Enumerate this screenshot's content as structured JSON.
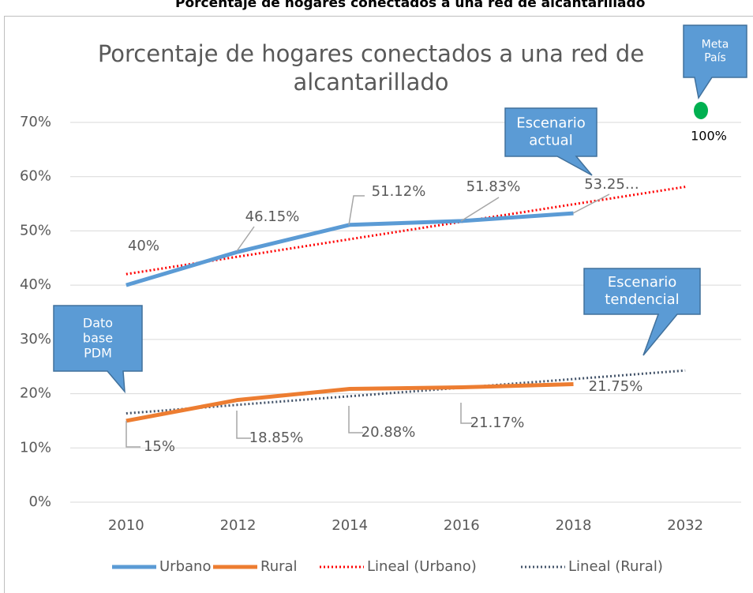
{
  "header": "Porcentaje de hogares conectados a una red de alcantarillado",
  "chart_data": {
    "type": "line",
    "title": "Porcentaje de hogares conectados a una red de alcantarillado",
    "categories": [
      "2010",
      "2012",
      "2014",
      "2016",
      "2018",
      "2032"
    ],
    "series": [
      {
        "name": "Urbano",
        "color": "#5b9bd5",
        "values": [
          40,
          46.15,
          51.12,
          51.83,
          53.25,
          null
        ],
        "value_labels": [
          "40%",
          "46.15%",
          "51.12%",
          "51.83%",
          "53.25…",
          null
        ]
      },
      {
        "name": "Rural",
        "color": "#ed7d31",
        "values": [
          15,
          18.85,
          20.88,
          21.17,
          21.75,
          null
        ],
        "value_labels": [
          "15%",
          "18.85%",
          "20.88%",
          "21.17%",
          "21.75%",
          null
        ]
      }
    ],
    "trendlines": [
      {
        "name": "Lineal (Urbano)",
        "color": "#ff0000",
        "of_series": 0
      },
      {
        "name": "Lineal (Rural)",
        "color": "#44546a",
        "of_series": 1
      }
    ],
    "ylim": [
      0,
      70
    ],
    "yticks": [
      {
        "value": 0,
        "label": "0%"
      },
      {
        "value": 10,
        "label": "10%"
      },
      {
        "value": 20,
        "label": "20%"
      },
      {
        "value": 30,
        "label": "30%"
      },
      {
        "value": 40,
        "label": "40%"
      },
      {
        "value": 50,
        "label": "50%"
      },
      {
        "value": 60,
        "label": "60%"
      },
      {
        "value": 70,
        "label": "70%"
      }
    ],
    "grid": true,
    "legend": "bottom",
    "annotations": [
      {
        "text": "Meta País",
        "point_label": "100%"
      },
      {
        "text": "Escenario actual"
      },
      {
        "text": "Escenario tendencial"
      },
      {
        "text": "Dato base PDM"
      }
    ]
  }
}
